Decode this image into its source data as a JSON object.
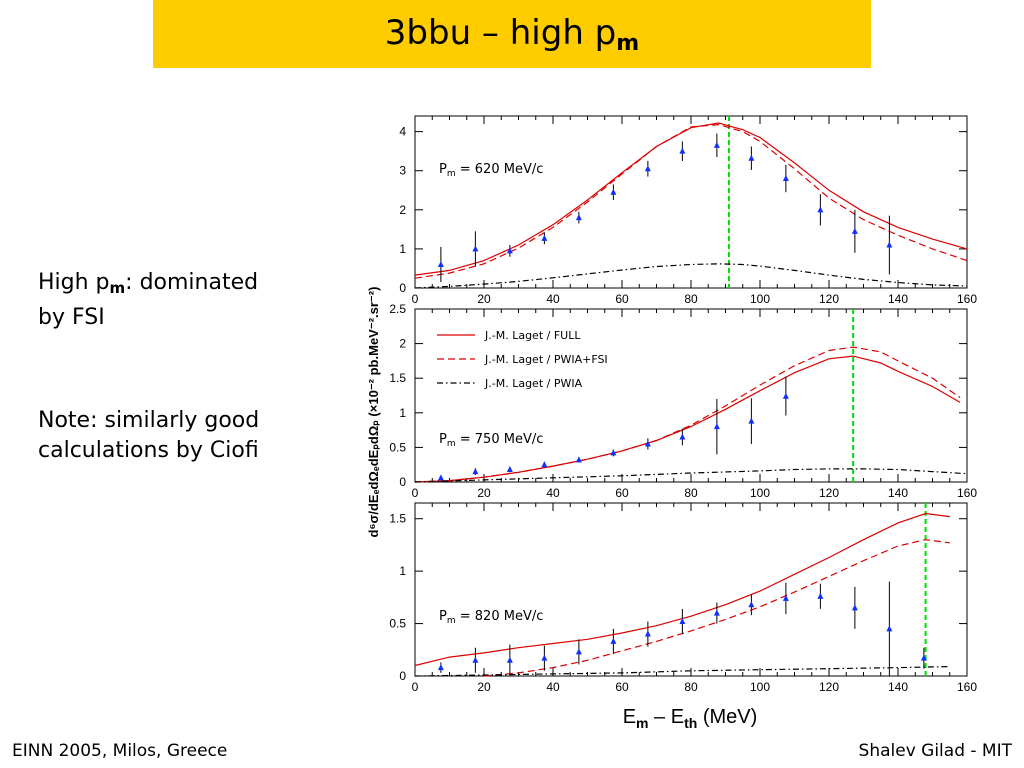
{
  "slide": {
    "title_main": "3bbu – high p",
    "title_sub": "m",
    "bullet1_pre": "High p",
    "bullet1_sub": "m",
    "bullet1_post": ": dominated",
    "bullet1_line2": "by FSI",
    "bullet2_line1": "Note: similarly good",
    "bullet2_line2": "calculations by Ciofi",
    "footer_left": "EINN 2005, Milos, Greece",
    "footer_right": "Shalev Gilad - MIT"
  },
  "chart_data": [
    {
      "type": "line",
      "panel_label": "P_m = 620 MeV/c",
      "xlim": [
        0,
        160
      ],
      "ylim": [
        0,
        4.4
      ],
      "x_ticks": [
        0,
        20,
        40,
        60,
        80,
        100,
        120,
        140,
        160
      ],
      "y_ticks": [
        0,
        1,
        2,
        3,
        4
      ],
      "threshold_x": 91,
      "series": [
        {
          "name": "J.-M. Laget / FULL",
          "style": "solid",
          "color": "#dd0000",
          "x": [
            0,
            10,
            20,
            30,
            40,
            50,
            60,
            70,
            80,
            88,
            95,
            100,
            110,
            120,
            130,
            140,
            150,
            160
          ],
          "y": [
            0.33,
            0.45,
            0.7,
            1.1,
            1.62,
            2.25,
            2.95,
            3.62,
            4.1,
            4.22,
            4.05,
            3.85,
            3.2,
            2.5,
            1.95,
            1.55,
            1.25,
            1.0
          ]
        },
        {
          "name": "J.-M. Laget / PWIA+FSI",
          "style": "dashed",
          "color": "#dd0000",
          "x": [
            0,
            10,
            20,
            30,
            40,
            50,
            60,
            70,
            80,
            88,
            95,
            100,
            110,
            120,
            130,
            140,
            150,
            160
          ],
          "y": [
            0.25,
            0.38,
            0.62,
            1.02,
            1.55,
            2.2,
            2.92,
            3.62,
            4.12,
            4.18,
            4.0,
            3.75,
            3.05,
            2.3,
            1.75,
            1.35,
            1.0,
            0.7
          ]
        },
        {
          "name": "J.-M. Laget / PWIA",
          "style": "dashdot",
          "color": "#000000",
          "x": [
            0,
            10,
            20,
            30,
            40,
            50,
            60,
            70,
            80,
            88,
            95,
            100,
            110,
            120,
            130,
            140,
            150,
            160
          ],
          "y": [
            0.0,
            0.04,
            0.1,
            0.17,
            0.26,
            0.36,
            0.46,
            0.55,
            0.6,
            0.62,
            0.6,
            0.56,
            0.45,
            0.33,
            0.22,
            0.14,
            0.08,
            0.05
          ]
        }
      ],
      "points": {
        "x": [
          7.5,
          17.5,
          27.5,
          37.5,
          47.5,
          57.5,
          67.5,
          77.5,
          87.5,
          97.5,
          107.5,
          117.5,
          127.5,
          137.5
        ],
        "y": [
          0.6,
          1.0,
          0.95,
          1.27,
          1.8,
          2.45,
          3.05,
          3.5,
          3.65,
          3.32,
          2.8,
          2.0,
          1.45,
          1.1
        ],
        "err": [
          0.45,
          0.45,
          0.15,
          0.15,
          0.15,
          0.2,
          0.2,
          0.25,
          0.3,
          0.3,
          0.35,
          0.4,
          0.55,
          0.75
        ]
      }
    },
    {
      "type": "line",
      "panel_label": "P_m = 750 MeV/c",
      "xlim": [
        0,
        160
      ],
      "ylim": [
        0,
        2.5
      ],
      "x_ticks": [
        0,
        20,
        40,
        60,
        80,
        100,
        120,
        140,
        160
      ],
      "y_ticks": [
        0,
        0.5,
        1,
        1.5,
        2,
        2.5
      ],
      "threshold_x": 127,
      "legend": {
        "placement": "top-left",
        "entries": [
          "J.-M. Laget / FULL",
          "J.-M. Laget / PWIA+FSI",
          "J.-M. Laget / PWIA"
        ]
      },
      "series": [
        {
          "name": "J.-M. Laget / FULL",
          "style": "solid",
          "color": "#dd0000",
          "x": [
            0,
            10,
            20,
            30,
            40,
            50,
            60,
            70,
            80,
            90,
            100,
            110,
            120,
            127,
            135,
            140,
            150,
            158
          ],
          "y": [
            0.0,
            0.02,
            0.07,
            0.14,
            0.23,
            0.33,
            0.45,
            0.6,
            0.8,
            1.05,
            1.32,
            1.58,
            1.78,
            1.82,
            1.72,
            1.6,
            1.38,
            1.15
          ]
        },
        {
          "name": "J.-M. Laget / PWIA+FSI",
          "style": "dashed",
          "color": "#dd0000",
          "x": [
            0,
            10,
            20,
            30,
            40,
            50,
            60,
            70,
            80,
            90,
            100,
            110,
            120,
            127,
            135,
            140,
            150,
            158
          ],
          "y": [
            0.0,
            0.02,
            0.07,
            0.14,
            0.23,
            0.33,
            0.45,
            0.6,
            0.82,
            1.1,
            1.4,
            1.68,
            1.9,
            1.95,
            1.88,
            1.75,
            1.5,
            1.22
          ]
        },
        {
          "name": "J.-M. Laget / PWIA",
          "style": "dashdot",
          "color": "#000000",
          "x": [
            0,
            20,
            40,
            60,
            80,
            100,
            110,
            120,
            130,
            140,
            150,
            160
          ],
          "y": [
            0.0,
            0.03,
            0.06,
            0.09,
            0.13,
            0.16,
            0.18,
            0.19,
            0.19,
            0.18,
            0.15,
            0.12
          ]
        }
      ],
      "points": {
        "x": [
          7.5,
          17.5,
          27.5,
          37.5,
          47.5,
          57.5,
          67.5,
          77.5,
          87.5,
          97.5,
          107.5
        ],
        "y": [
          0.06,
          0.15,
          0.18,
          0.25,
          0.32,
          0.42,
          0.55,
          0.65,
          0.8,
          0.88,
          1.24
        ],
        "err": [
          0.03,
          0.05,
          0.04,
          0.04,
          0.04,
          0.05,
          0.08,
          0.12,
          0.4,
          0.33,
          0.28
        ]
      }
    },
    {
      "type": "line",
      "panel_label": "P_m = 820 MeV/c",
      "xlim": [
        0,
        160
      ],
      "ylim": [
        0,
        1.65
      ],
      "x_ticks": [
        0,
        20,
        40,
        60,
        80,
        100,
        120,
        140,
        160
      ],
      "y_ticks": [
        0,
        0.5,
        1,
        1.5
      ],
      "threshold_x": 148,
      "series": [
        {
          "name": "J.-M. Laget / FULL",
          "style": "solid",
          "color": "#dd0000",
          "x": [
            0,
            10,
            20,
            30,
            40,
            50,
            60,
            70,
            80,
            90,
            100,
            110,
            120,
            130,
            140,
            148,
            155
          ],
          "y": [
            0.1,
            0.18,
            0.22,
            0.27,
            0.31,
            0.35,
            0.41,
            0.48,
            0.57,
            0.68,
            0.81,
            0.97,
            1.13,
            1.3,
            1.46,
            1.55,
            1.52
          ]
        },
        {
          "name": "J.-M. Laget / PWIA+FSI",
          "style": "dashed",
          "color": "#dd0000",
          "x": [
            20,
            30,
            40,
            50,
            60,
            70,
            80,
            90,
            100,
            110,
            120,
            130,
            140,
            148,
            155
          ],
          "y": [
            0.0,
            0.03,
            0.08,
            0.15,
            0.24,
            0.33,
            0.43,
            0.54,
            0.66,
            0.8,
            0.95,
            1.1,
            1.24,
            1.3,
            1.27
          ]
        },
        {
          "name": "J.-M. Laget / PWIA",
          "style": "dashdot",
          "color": "#000000",
          "x": [
            0,
            20,
            40,
            60,
            80,
            100,
            120,
            140,
            155
          ],
          "y": [
            0.0,
            0.01,
            0.02,
            0.03,
            0.05,
            0.06,
            0.07,
            0.08,
            0.09
          ]
        }
      ],
      "points": {
        "x": [
          7.5,
          17.5,
          27.5,
          37.5,
          47.5,
          57.5,
          67.5,
          77.5,
          87.5,
          97.5,
          107.5,
          117.5,
          127.5,
          137.5,
          147.5
        ],
        "y": [
          0.08,
          0.15,
          0.15,
          0.17,
          0.23,
          0.33,
          0.4,
          0.52,
          0.6,
          0.68,
          0.74,
          0.76,
          0.65,
          0.45,
          0.17
        ],
        "err": [
          0.05,
          0.12,
          0.15,
          0.12,
          0.12,
          0.12,
          0.12,
          0.12,
          0.1,
          0.1,
          0.15,
          0.12,
          0.2,
          0.45,
          0.1
        ]
      }
    }
  ],
  "axes": {
    "y_label": "d⁶σ/dE",
    "y_label_subs": [
      "e",
      "e",
      "p",
      "p"
    ],
    "y_label_full": "d⁶σ/dEₑdΩₑdEₚdΩₚ  (×10⁻² pb.MeV⁻².sr⁻²)",
    "x_label_E": "E",
    "x_label_m": "m",
    "x_label_dash": " – E",
    "x_label_th": "th",
    "x_label_unit": " (MeV)"
  }
}
